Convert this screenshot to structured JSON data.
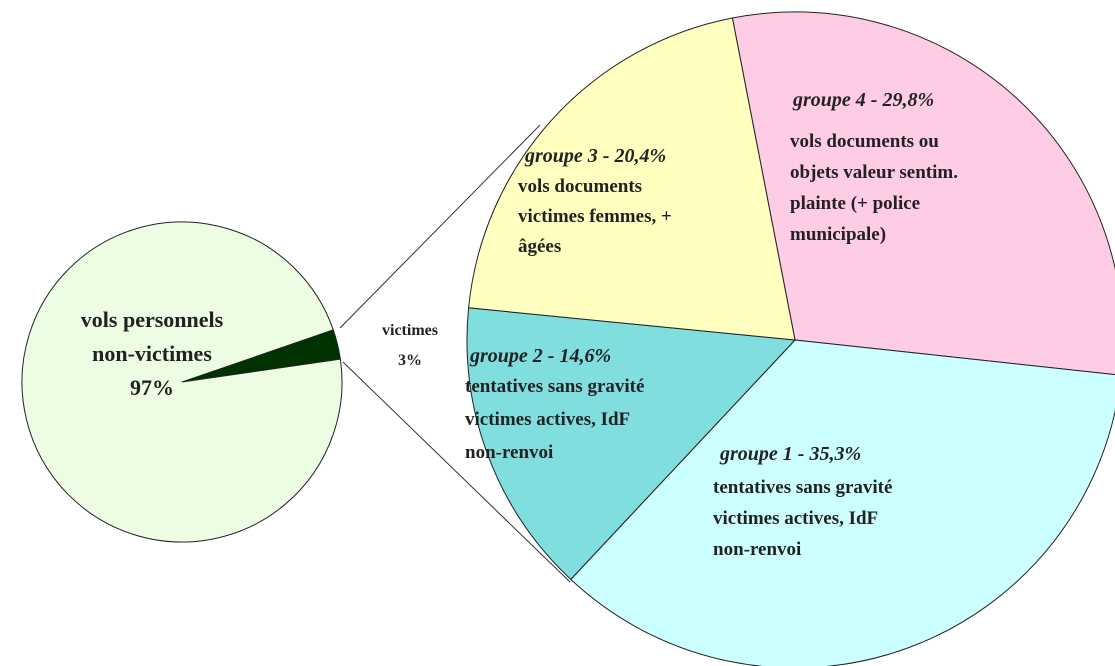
{
  "chart_data": [
    {
      "type": "pie",
      "label_lines": [
        [
          "victimes"
        ],
        [
          "vols personnels",
          "non-victimes"
        ]
      ],
      "values": [
        3,
        97
      ],
      "value_labels": [
        "3%",
        "97%"
      ],
      "colors": [
        "#003300",
        "#ecfde4"
      ]
    },
    {
      "type": "pie",
      "values": [
        29.8,
        35.3,
        14.6,
        20.4
      ],
      "value_labels": [
        "groupe 4 - 29,8%",
        "groupe 1 - 35,3%",
        "groupe 2 - 14,6%",
        "groupe 3 - 20,4%"
      ],
      "descriptions": [
        [
          "vols documents ou",
          "objets valeur sentim.",
          "plainte (+ police",
          "municipale)"
        ],
        [
          "tentatives sans gravité",
          "victimes actives, IdF",
          "non-renvoi"
        ],
        [
          "tentatives sans gravité",
          "victimes actives, IdF",
          "non-renvoi"
        ],
        [
          "vols documents",
          "victimes femmes, +",
          "âgées"
        ]
      ],
      "colors": [
        "#ffcce6",
        "#ccffff",
        "#80dede",
        "#ffffc0"
      ]
    }
  ]
}
